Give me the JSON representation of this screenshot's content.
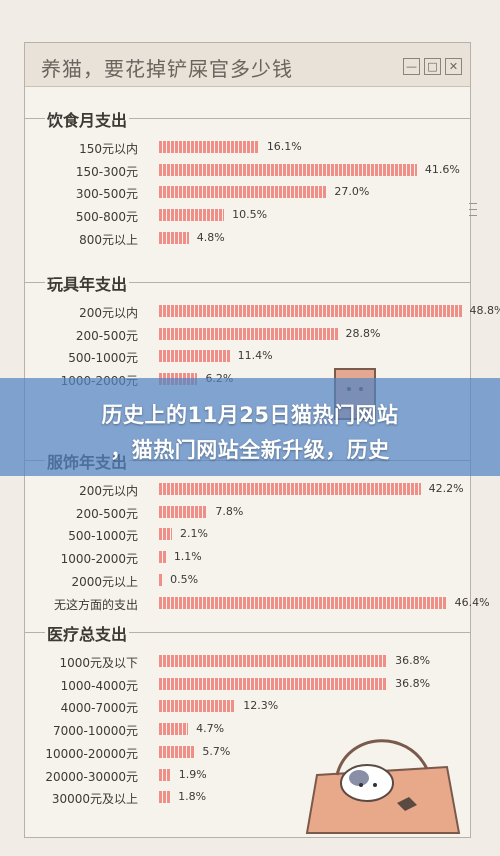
{
  "window": {
    "title": "养猫，要花掉铲屎官多少钱",
    "minimize_label": "—",
    "restore_label": "□",
    "close_label": "✕"
  },
  "banner": {
    "line1": "历史上的11月25日猫热门网站",
    "line2": "，猫热门网站全新升级，历史"
  },
  "colors": {
    "bar": "#ef8f87",
    "background": "#f6f2ec",
    "banner": "#5284c4"
  },
  "chart_data": [
    {
      "type": "bar",
      "title": "饮食月支出",
      "categories": [
        "150元以内",
        "150-300元",
        "300-500元",
        "500-800元",
        "800元以上"
      ],
      "values": [
        16.1,
        41.6,
        27.0,
        10.5,
        4.8
      ],
      "labels": [
        "16.1%",
        "41.6%",
        "27.0%",
        "10.5%",
        "4.8%"
      ]
    },
    {
      "type": "bar",
      "title": "玩具年支出",
      "categories": [
        "200元以内",
        "200-500元",
        "500-1000元",
        "1000-2000元"
      ],
      "values": [
        48.8,
        28.8,
        11.4,
        6.2
      ],
      "labels": [
        "48.8%",
        "28.8%",
        "11.4%",
        "6.2%"
      ]
    },
    {
      "type": "bar",
      "title": "服饰年支出",
      "categories": [
        "200元以内",
        "200-500元",
        "500-1000元",
        "1000-2000元",
        "2000元以上",
        "无这方面的支出"
      ],
      "values": [
        42.2,
        7.8,
        2.1,
        1.1,
        0.5,
        46.4
      ],
      "labels": [
        "42.2%",
        "7.8%",
        "2.1%",
        "1.1%",
        "0.5%",
        "46.4%"
      ]
    },
    {
      "type": "bar",
      "title": "医疗总支出",
      "categories": [
        "1000元及以下",
        "1000-4000元",
        "4000-7000元",
        "7000-10000元",
        "10000-20000元",
        "20000-30000元",
        "30000元及以上"
      ],
      "values": [
        36.8,
        36.8,
        12.3,
        4.7,
        5.7,
        1.9,
        1.8
      ],
      "labels": [
        "36.8%",
        "36.8%",
        "12.3%",
        "4.7%",
        "5.7%",
        "1.9%",
        "1.8%"
      ]
    }
  ]
}
